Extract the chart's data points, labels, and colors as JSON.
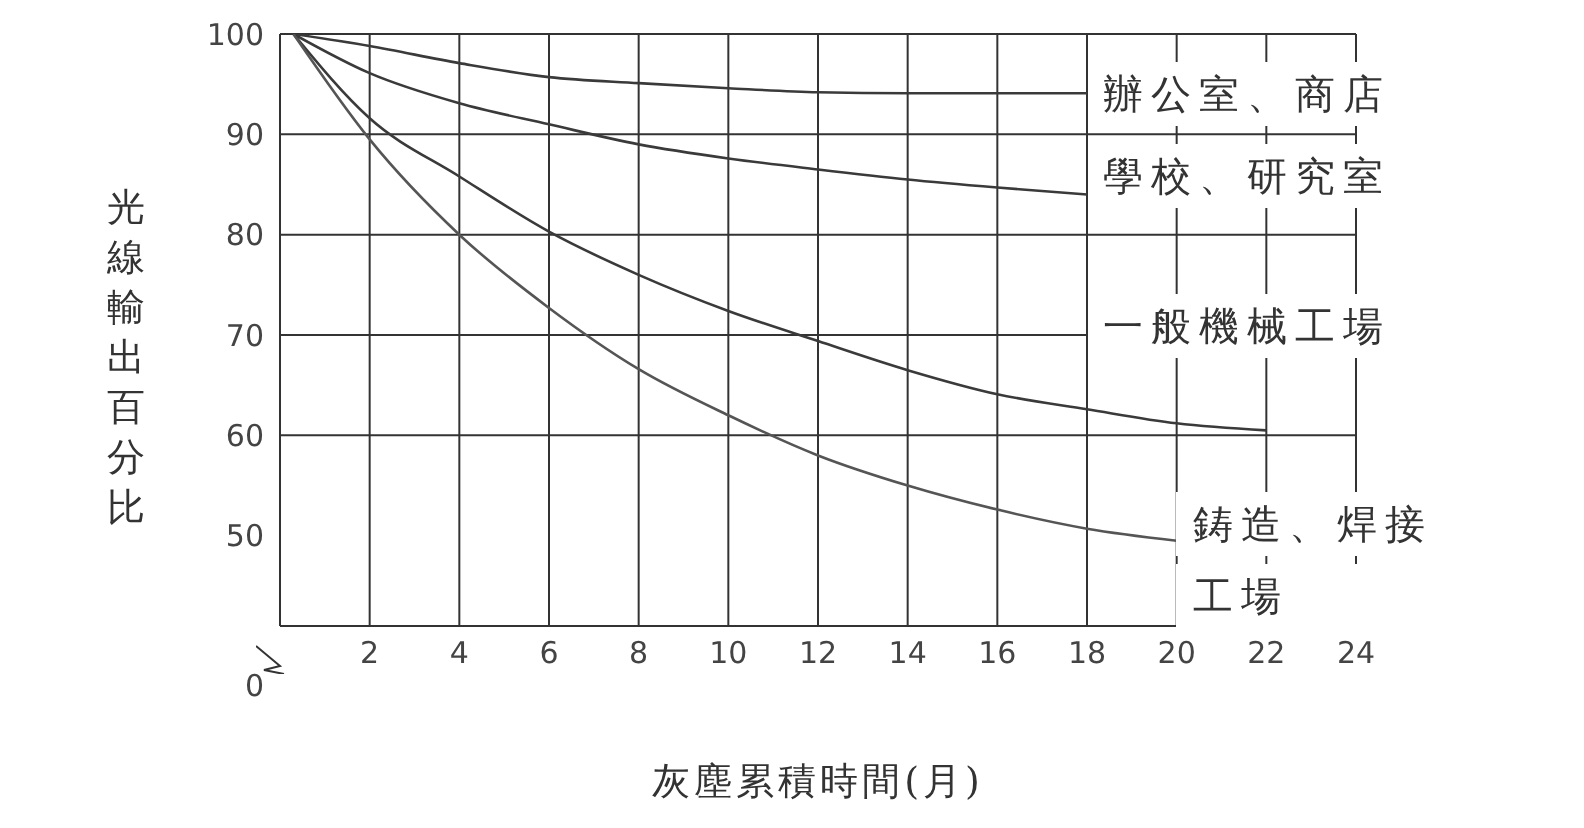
{
  "chart_data": {
    "type": "line",
    "xlabel": "灰塵累積時間(月)",
    "ylabel": "光線輸出百分比",
    "xlim": [
      0,
      24
    ],
    "xticks": [
      2,
      4,
      6,
      8,
      10,
      12,
      14,
      16,
      18,
      20,
      22,
      24
    ],
    "ylim": [
      41,
      100
    ],
    "yticks": [
      50,
      60,
      70,
      80,
      90,
      100
    ],
    "grid": true,
    "marker": "none",
    "line_style": "solid",
    "series": [
      {
        "color": "#3a3a3a",
        "x": [
          0.3,
          2,
          4,
          6,
          8,
          10,
          12,
          14,
          16,
          18
        ],
        "values": [
          100,
          98.8,
          97.1,
          95.7,
          95.1,
          94.6,
          94.2,
          94.1,
          94.1,
          94.1
        ]
      },
      {
        "color": "#3a3a3a",
        "x": [
          0.3,
          2,
          4,
          6,
          8,
          10,
          12,
          14,
          16,
          18
        ],
        "values": [
          100,
          96.1,
          93.1,
          91,
          89,
          87.6,
          86.5,
          85.5,
          84.7,
          84
        ]
      },
      {
        "color": "#3a3a3a",
        "x": [
          0.3,
          2,
          4,
          6,
          8,
          10,
          12,
          14,
          16,
          18,
          20,
          22
        ],
        "values": [
          100,
          91.6,
          85.8,
          80.3,
          76,
          72.4,
          69.4,
          66.5,
          64.1,
          62.6,
          61.2,
          60.5
        ]
      },
      {
        "color": "#555555",
        "x": [
          0.3,
          2,
          4,
          6,
          8,
          10,
          12,
          14,
          16,
          18,
          20
        ],
        "values": [
          100,
          89.5,
          80,
          72.7,
          66.6,
          62,
          58,
          55,
          52.6,
          50.7,
          49.5
        ]
      }
    ],
    "annotations": [
      "辦公室、商店",
      "學校、研究室",
      "一般機械工場",
      "鋳造、焊接",
      "工場",
      "0"
    ]
  }
}
